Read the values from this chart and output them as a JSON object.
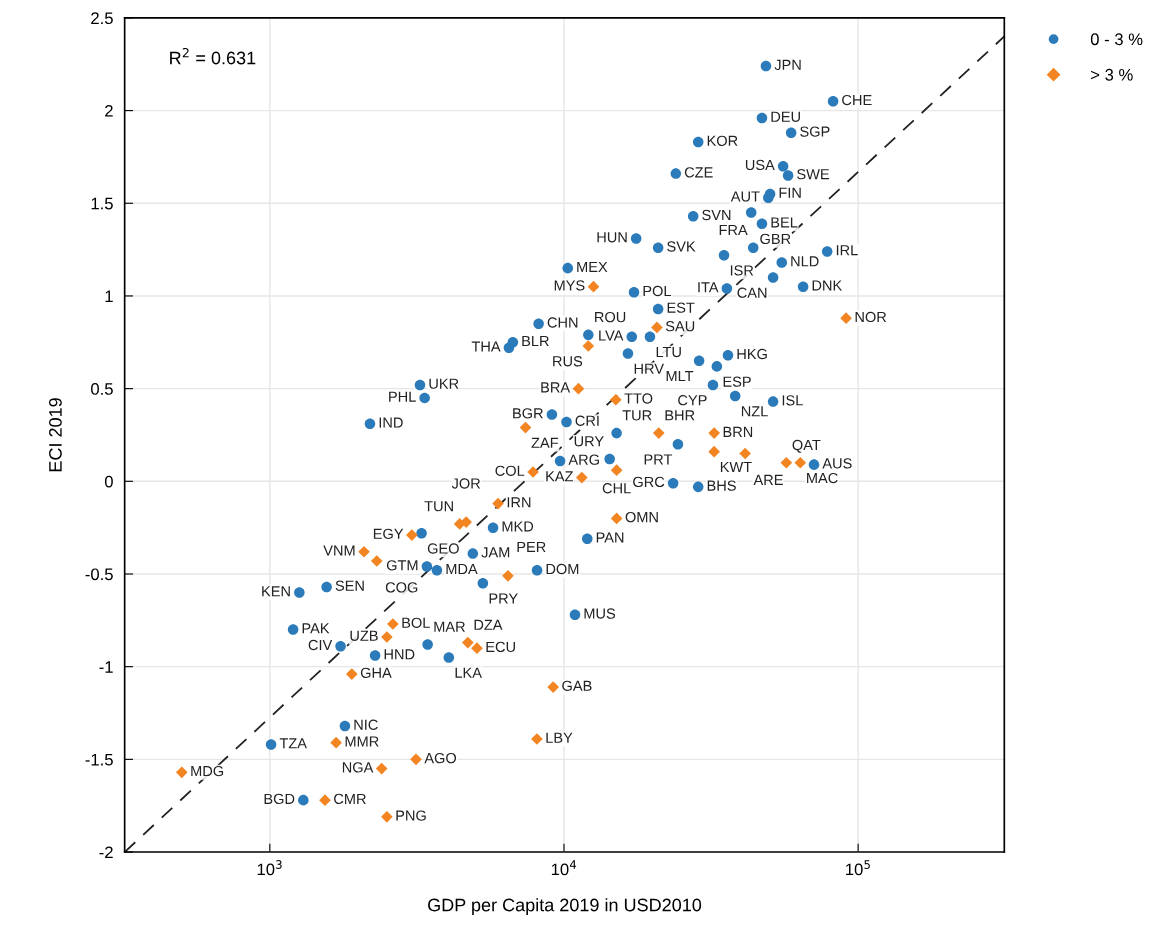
{
  "chart_data": {
    "type": "scatter",
    "xlabel": "GDP per Capita 2019 in USD2010",
    "ylabel": "ECI 2019",
    "log": "x",
    "grid": true,
    "legend": "top right",
    "xlim": [
      321,
      314000
    ],
    "xticks": [
      {
        "value": 1000,
        "label": "10$^{3}$"
      },
      {
        "value": 10000,
        "label": "10$^{4}$"
      },
      {
        "value": 100000,
        "label": "10$^{5}$"
      }
    ],
    "ylim": [
      -2,
      2.5
    ],
    "yticks": [
      -2,
      -1.5,
      -1,
      -0.5,
      0,
      0.5,
      1,
      1.5,
      2,
      2.5
    ],
    "annotations": [
      "R$^{2}$ = 0.631"
    ],
    "series": [
      {
        "name": "0 - 3 %",
        "color": "#2b7bba",
        "marker": "circle",
        "x": [
          48600,
          82200,
          47100,
          59200,
          28600,
          24000,
          55600,
          57800,
          50200,
          49500,
          27500,
          43300,
          47100,
          17600,
          20900,
          35000,
          44000,
          78500,
          55000,
          51400,
          65000,
          10300,
          35800,
          17300,
          20900,
          8200,
          6700,
          6500,
          12100,
          17000,
          19600,
          16500,
          28800,
          36100,
          33100,
          32100,
          38200,
          51400,
          9100,
          10200,
          15100,
          24400,
          70800,
          9700,
          14300,
          23500,
          28600,
          5740,
          3280,
          4900,
          3420,
          3700,
          5300,
          8100,
          12000,
          10900,
          1260,
          1560,
          1200,
          1740,
          2280,
          3440,
          4060,
          1800,
          1010,
          1300,
          3240,
          3360,
          2190
        ],
        "values": [
          2.24,
          2.05,
          1.96,
          1.88,
          1.83,
          1.66,
          1.7,
          1.65,
          1.55,
          1.53,
          1.43,
          1.45,
          1.39,
          1.31,
          1.26,
          1.22,
          1.26,
          1.24,
          1.18,
          1.1,
          1.05,
          1.15,
          1.04,
          1.02,
          0.93,
          0.85,
          0.75,
          0.72,
          0.79,
          0.78,
          0.78,
          0.69,
          0.65,
          0.68,
          0.62,
          0.52,
          0.46,
          0.43,
          0.36,
          0.32,
          0.26,
          0.2,
          0.09,
          0.11,
          0.12,
          -0.01,
          -0.03,
          -0.25,
          -0.28,
          -0.39,
          -0.46,
          -0.48,
          -0.55,
          -0.48,
          -0.31,
          -0.72,
          -0.6,
          -0.57,
          -0.8,
          -0.89,
          -0.94,
          -0.88,
          -0.95,
          -1.32,
          -1.42,
          -1.72,
          0.52,
          0.45,
          0.31
        ],
        "value_labels": [
          "JPN",
          "CHE",
          "DEU",
          "SGP",
          "KOR",
          "CZE",
          "USA",
          "SWE",
          "FIN",
          "AUT",
          "SVN",
          "GBR",
          "BEL",
          "HUN",
          "SVK",
          "ISR",
          "FRA",
          "IRL",
          "NLD",
          "CAN",
          "DNK",
          "MEX",
          "ITA",
          "POL",
          "EST",
          "CHN",
          "BLR",
          "THA",
          "ROU",
          "LVA",
          "LTU",
          "HRV",
          "MLT",
          "HKG",
          "ESP",
          "CYP",
          "NZL",
          "ISL",
          "BGR",
          "CRI",
          "TUR",
          "PRT",
          "AUS",
          "ARG",
          "URY",
          "GRC",
          "BHS",
          "MKD",
          "GEO",
          "JAM",
          "GTM",
          "MDA",
          "PRY",
          "DOM",
          "PAN",
          "MUS",
          "KEN",
          "SEN",
          "PAK",
          "CIV",
          "HND",
          "MAR",
          "LKA",
          "NIC",
          "TZA",
          "BGD",
          "UKR",
          "PHL",
          "IND"
        ]
      },
      {
        "name": "> 3 %",
        "color": "#f28522",
        "marker": "diamond",
        "x": [
          12600,
          20700,
          12100,
          11200,
          15000,
          7400,
          21000,
          32400,
          32400,
          41300,
          57000,
          63600,
          7850,
          15100,
          11500,
          5970,
          4420,
          4650,
          3040,
          2090,
          2310,
          6450,
          15100,
          2620,
          2500,
          4710,
          5060,
          1900,
          1680,
          502,
          2400,
          3140,
          1540,
          2500,
          9190,
          8090,
          91000
        ],
        "values": [
          1.05,
          0.83,
          0.73,
          0.5,
          0.44,
          0.29,
          0.26,
          0.26,
          0.16,
          0.15,
          0.1,
          0.1,
          0.05,
          0.06,
          0.02,
          -0.12,
          -0.23,
          -0.22,
          -0.29,
          -0.38,
          -0.43,
          -0.51,
          -0.2,
          -0.77,
          -0.84,
          -0.87,
          -0.9,
          -1.04,
          -1.41,
          -1.57,
          -1.55,
          -1.5,
          -1.72,
          -1.81,
          -1.11,
          -1.39,
          0.88
        ],
        "value_labels": [
          "MYS",
          "SAU",
          "RUS",
          "BRA",
          "TTO",
          "ZAF",
          "BHR",
          "BRN",
          "KWT",
          "ARE",
          "QAT",
          "MAC",
          "COL",
          "CHL",
          "KAZ",
          "IRN",
          "TUN",
          "JOR",
          "EGY",
          "VNM",
          "COG",
          "PER",
          "OMN",
          "BOL",
          "UZB",
          "DZA",
          "ECU",
          "GHA",
          "MMR",
          "MDG",
          "NGA",
          "AGO",
          "CMR",
          "PNG",
          "GAB",
          "LBY",
          "NOR"
        ]
      },
      {
        "type": "line",
        "color": "#222222",
        "line_style": "dashed",
        "marker": "none",
        "x": [
          321,
          314000
        ],
        "values": [
          -2,
          2.4
        ]
      }
    ]
  }
}
